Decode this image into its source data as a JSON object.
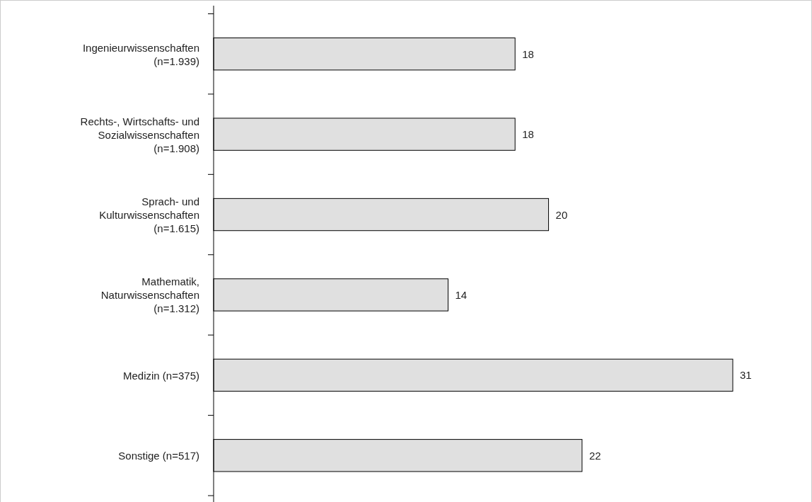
{
  "chart_data": {
    "type": "bar",
    "orientation": "horizontal",
    "categories": [
      "Ingenieurwissenschaften\n(n=1.939)",
      "Rechts-, Wirtschafts- und\nSozialwissenschaften\n(n=1.908)",
      "Sprach- und\nKulturwissenschaften\n(n=1.615)",
      "Mathematik,\nNaturwissenschaften\n(n=1.312)",
      "Medizin (n=375)",
      "Sonstige (n=517)"
    ],
    "values": [
      18,
      18,
      20,
      14,
      31,
      22
    ],
    "color": "#e0e0e0",
    "data_labels": true
  }
}
